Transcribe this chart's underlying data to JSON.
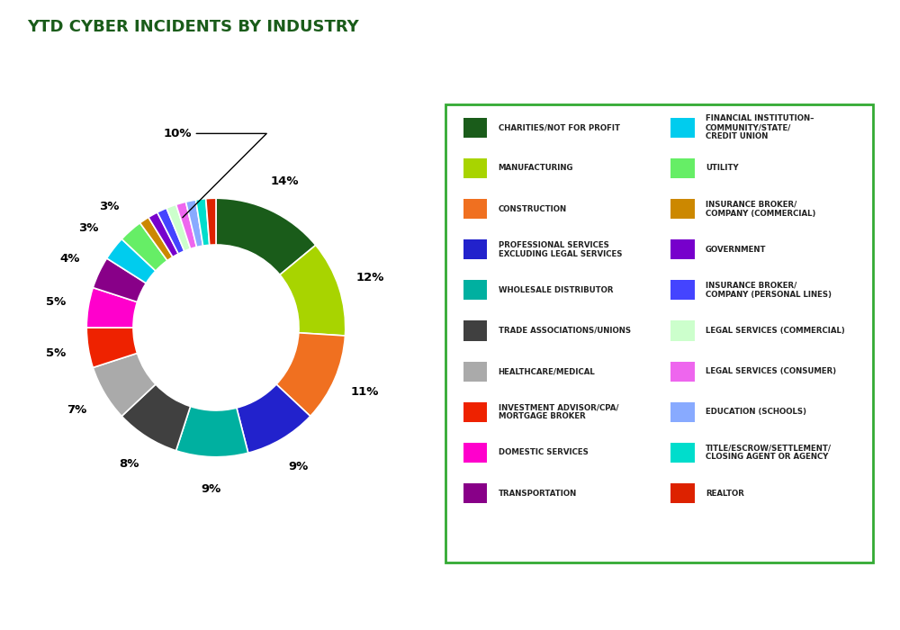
{
  "title": "YTD CYBER INCIDENTS BY INDUSTRY",
  "title_color": "#1a5c1a",
  "title_fontsize": 13,
  "segments": [
    {
      "label": "CHARITIES/NOT FOR PROFIT",
      "value": 14,
      "color": "#1a5c1a",
      "pct_label": "14%"
    },
    {
      "label": "MANUFACTURING",
      "value": 12,
      "color": "#a8d400",
      "pct_label": "12%"
    },
    {
      "label": "CONSTRUCTION",
      "value": 11,
      "color": "#f07020",
      "pct_label": "11%"
    },
    {
      "label": "PROFESSIONAL SERVICES\nEXCLUDING LEGAL SERVICES",
      "value": 9,
      "color": "#2222cc",
      "pct_label": "9%"
    },
    {
      "label": "WHOLESALE DISTRIBUTOR",
      "value": 9,
      "color": "#00b0a0",
      "pct_label": "9%"
    },
    {
      "label": "TRADE ASSOCIATIONS/UNIONS",
      "value": 8,
      "color": "#404040",
      "pct_label": "8%"
    },
    {
      "label": "HEALTHCARE/MEDICAL",
      "value": 7,
      "color": "#aaaaaa",
      "pct_label": "7%"
    },
    {
      "label": "INVESTMENT ADVISOR/CPA/\nMORTGAGE BROKER",
      "value": 5,
      "color": "#ee2200",
      "pct_label": "5%"
    },
    {
      "label": "DOMESTIC SERVICES",
      "value": 5,
      "color": "#ff00cc",
      "pct_label": "5%"
    },
    {
      "label": "TRANSPORTATION",
      "value": 4,
      "color": "#880088",
      "pct_label": "4%"
    },
    {
      "label": "FINANCIAL INSTITUTION–\nCOMMUNITY/STATE/\nCREDIT UNION",
      "value": 3,
      "color": "#00ccee",
      "pct_label": "3%"
    },
    {
      "label": "UTILITY",
      "value": 3,
      "color": "#66ee66",
      "pct_label": "3%"
    },
    {
      "label": "INSURANCE BROKER/\nCOMPANY (COMMERCIAL)",
      "value": 1.25,
      "color": "#cc8800",
      "pct_label": ""
    },
    {
      "label": "GOVERNMENT",
      "value": 1.25,
      "color": "#7700cc",
      "pct_label": ""
    },
    {
      "label": "INSURANCE BROKER/\nCOMPANY (PERSONAL LINES)",
      "value": 1.25,
      "color": "#4444ff",
      "pct_label": ""
    },
    {
      "label": "LEGAL SERVICES (COMMERCIAL)",
      "value": 1.25,
      "color": "#ccffcc",
      "pct_label": ""
    },
    {
      "label": "LEGAL SERVICES (CONSUMER)",
      "value": 1.25,
      "color": "#ee66ee",
      "pct_label": ""
    },
    {
      "label": "EDUCATION (SCHOOLS)",
      "value": 1.25,
      "color": "#88aaff",
      "pct_label": ""
    },
    {
      "label": "TITLE/ESCROW/SETTLEMENT/\nCLOSING AGENT OR AGENCY",
      "value": 1.25,
      "color": "#00ddcc",
      "pct_label": ""
    },
    {
      "label": "REALTOR",
      "value": 1.25,
      "color": "#dd2200",
      "pct_label": ""
    }
  ],
  "legend_left": [
    {
      "label": "CHARITIES/NOT FOR PROFIT",
      "color": "#1a5c1a"
    },
    {
      "label": "MANUFACTURING",
      "color": "#a8d400"
    },
    {
      "label": "CONSTRUCTION",
      "color": "#f07020"
    },
    {
      "label": "PROFESSIONAL SERVICES\nEXCLUDING LEGAL SERVICES",
      "color": "#2222cc"
    },
    {
      "label": "WHOLESALE DISTRIBUTOR",
      "color": "#00b0a0"
    },
    {
      "label": "TRADE ASSOCIATIONS/UNIONS",
      "color": "#404040"
    },
    {
      "label": "HEALTHCARE/MEDICAL",
      "color": "#aaaaaa"
    },
    {
      "label": "INVESTMENT ADVISOR/CPA/\nMORTGAGE BROKER",
      "color": "#ee2200"
    },
    {
      "label": "DOMESTIC SERVICES",
      "color": "#ff00cc"
    },
    {
      "label": "TRANSPORTATION",
      "color": "#880088"
    }
  ],
  "legend_right": [
    {
      "label": "FINANCIAL INSTITUTION–\nCOMMUNITY/STATE/\nCREDIT UNION",
      "color": "#00ccee"
    },
    {
      "label": "UTILITY",
      "color": "#66ee66"
    },
    {
      "label": "INSURANCE BROKER/\nCOMPANY (COMMERCIAL)",
      "color": "#cc8800"
    },
    {
      "label": "GOVERNMENT",
      "color": "#7700cc"
    },
    {
      "label": "INSURANCE BROKER/\nCOMPANY (PERSONAL LINES)",
      "color": "#4444ff"
    },
    {
      "label": "LEGAL SERVICES (COMMERCIAL)",
      "color": "#ccffcc"
    },
    {
      "label": "LEGAL SERVICES (CONSUMER)",
      "color": "#ee66ee"
    },
    {
      "label": "EDUCATION (SCHOOLS)",
      "color": "#88aaff"
    },
    {
      "label": "TITLE/ESCROW/SETTLEMENT/\nCLOSING AGENT OR AGENCY",
      "color": "#00ddcc"
    },
    {
      "label": "REALTOR",
      "color": "#dd2200"
    }
  ],
  "background_color": "#ffffff",
  "legend_box_color": "#33aa33"
}
